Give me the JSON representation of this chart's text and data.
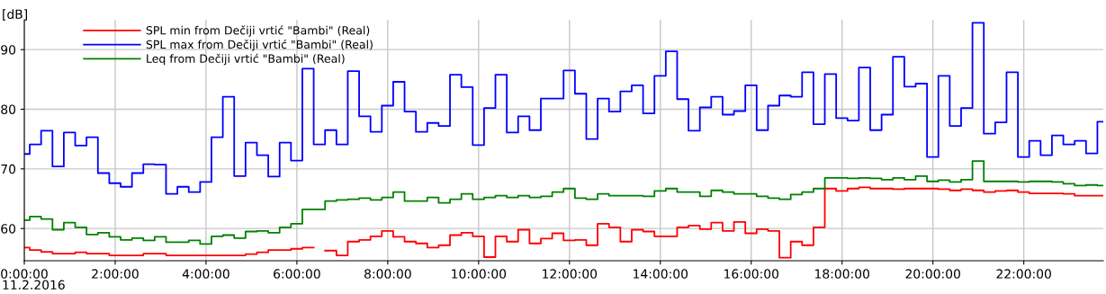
{
  "chart_data": {
    "type": "step",
    "ylabel": "[dB]",
    "annotations": [
      "11.2.2016"
    ],
    "x": [
      0,
      0.12,
      0.37,
      0.62,
      0.87,
      1.12,
      1.37,
      1.62,
      1.87,
      2.12,
      2.37,
      2.62,
      2.87,
      3.12,
      3.37,
      3.62,
      3.87,
      4.12,
      4.37,
      4.62,
      4.87,
      5.12,
      5.37,
      5.62,
      5.87,
      6.12,
      6.37,
      6.62,
      6.87,
      7.12,
      7.37,
      7.62,
      7.87,
      8.12,
      8.37,
      8.62,
      8.87,
      9.12,
      9.37,
      9.62,
      9.87,
      10.12,
      10.37,
      10.62,
      10.87,
      11.12,
      11.37,
      11.62,
      11.87,
      12.12,
      12.37,
      12.62,
      12.87,
      13.12,
      13.37,
      13.62,
      13.87,
      14.12,
      14.37,
      14.62,
      14.87,
      15.12,
      15.37,
      15.62,
      15.87,
      16.12,
      16.37,
      16.62,
      16.87,
      17.12,
      17.37,
      17.62,
      17.87,
      18.12,
      18.37,
      18.62,
      18.87,
      19.12,
      19.37,
      19.62,
      19.87,
      20.12,
      20.37,
      20.62,
      20.87,
      21.12,
      21.37,
      21.62,
      21.87,
      22.12,
      22.37,
      22.62,
      22.87,
      23.12,
      23.37,
      23.62,
      23.75
    ],
    "series": [
      {
        "name": "SPL min from Dečiji vrtić \"Bambi\" (Real)",
        "color": "#ff0000",
        "values": [
          56.8,
          56.4,
          56.1,
          55.8,
          55.8,
          56.0,
          55.8,
          55.8,
          55.5,
          55.5,
          55.5,
          55.8,
          55.8,
          55.5,
          55.5,
          55.5,
          55.5,
          55.5,
          55.5,
          55.5,
          55.7,
          56.0,
          56.4,
          56.4,
          56.6,
          56.8,
          null,
          56.3,
          55.5,
          57.8,
          58.1,
          58.7,
          59.6,
          58.6,
          57.8,
          57.5,
          56.8,
          57.2,
          58.9,
          59.3,
          58.7,
          55.2,
          58.7,
          57.8,
          59.8,
          57.5,
          58.3,
          59.2,
          58.0,
          58.1,
          57.2,
          60.8,
          60.2,
          57.8,
          59.8,
          59.5,
          58.7,
          58.7,
          60.2,
          60.5,
          59.9,
          61.0,
          59.6,
          61.1,
          59.2,
          59.9,
          59.6,
          55.1,
          57.8,
          57.2,
          60.2,
          66.7,
          66.3,
          66.7,
          66.9,
          66.7,
          66.7,
          66.6,
          66.7,
          66.7,
          66.7,
          66.6,
          66.4,
          66.6,
          66.4,
          66.1,
          66.3,
          66.4,
          66.1,
          65.9,
          65.9,
          65.9,
          65.8,
          65.5,
          65.5,
          65.5,
          65.5
        ]
      },
      {
        "name": "SPL max from Dečiji vrtić \"Bambi\" (Real)",
        "color": "#0000ff",
        "values": [
          72.5,
          74.1,
          76.4,
          70.4,
          76.1,
          73.9,
          75.3,
          69.3,
          67.6,
          67.0,
          69.3,
          70.8,
          70.7,
          65.8,
          67.0,
          66.1,
          67.8,
          75.3,
          82.1,
          68.8,
          74.4,
          72.3,
          68.7,
          74.4,
          71.4,
          86.8,
          74.1,
          76.5,
          74.1,
          86.4,
          78.8,
          76.2,
          80.6,
          84.6,
          79.6,
          76.2,
          77.7,
          77.2,
          85.8,
          83.7,
          74.0,
          80.2,
          85.8,
          76.1,
          78.8,
          76.5,
          81.8,
          81.8,
          86.5,
          82.6,
          75.0,
          81.8,
          79.6,
          83.0,
          84.0,
          79.3,
          85.6,
          89.7,
          81.7,
          76.4,
          80.3,
          82.1,
          79.1,
          79.7,
          84.0,
          76.5,
          80.6,
          82.3,
          82.1,
          86.2,
          77.5,
          85.9,
          78.5,
          78.1,
          87.0,
          76.5,
          79.1,
          88.8,
          83.8,
          84.3,
          72.0,
          85.6,
          77.2,
          80.2,
          94.5,
          75.9,
          77.8,
          86.2,
          72.0,
          74.7,
          72.3,
          75.6,
          74.1,
          74.7,
          72.6,
          77.9,
          77.9
        ]
      },
      {
        "name": "Leq from Dečiji vrtić \"Bambi\" (Real)",
        "color": "#008000",
        "values": [
          61.4,
          62.0,
          61.6,
          59.8,
          61.0,
          60.2,
          59.0,
          59.3,
          58.6,
          58.1,
          58.4,
          58.0,
          58.6,
          57.7,
          57.7,
          58.0,
          57.4,
          58.7,
          58.9,
          58.4,
          59.5,
          59.6,
          59.3,
          60.2,
          60.8,
          63.2,
          63.2,
          64.6,
          64.8,
          64.9,
          65.1,
          64.8,
          65.2,
          66.1,
          64.6,
          64.6,
          65.2,
          64.3,
          64.9,
          65.8,
          64.9,
          65.2,
          65.5,
          65.2,
          65.5,
          65.2,
          65.4,
          66.1,
          66.7,
          65.1,
          64.9,
          65.8,
          65.5,
          65.5,
          65.5,
          65.4,
          66.3,
          66.7,
          66.1,
          66.1,
          65.4,
          66.4,
          66.1,
          65.8,
          65.8,
          65.4,
          65.1,
          64.9,
          65.7,
          66.1,
          66.7,
          68.5,
          68.5,
          68.4,
          68.5,
          68.4,
          68.2,
          68.5,
          68.2,
          68.8,
          67.9,
          68.1,
          67.8,
          68.2,
          71.3,
          67.9,
          67.9,
          67.9,
          67.8,
          67.9,
          67.9,
          67.8,
          67.5,
          67.2,
          67.3,
          67.2,
          67.2
        ]
      }
    ],
    "xlim": [
      0,
      23.75
    ],
    "ylim": [
      54.6,
      95
    ],
    "xticks": [
      {
        "value": 0,
        "label": "0:00:00"
      },
      {
        "value": 2,
        "label": "2:00:00"
      },
      {
        "value": 4,
        "label": "4:00:00"
      },
      {
        "value": 6,
        "label": "6:00:00"
      },
      {
        "value": 8,
        "label": "8:00:00"
      },
      {
        "value": 10,
        "label": "10:00:00"
      },
      {
        "value": 12,
        "label": "12:00:00"
      },
      {
        "value": 14,
        "label": "14:00:00"
      },
      {
        "value": 16,
        "label": "16:00:00"
      },
      {
        "value": 18,
        "label": "18:00:00"
      },
      {
        "value": 20,
        "label": "20:00:00"
      },
      {
        "value": 22,
        "label": "22:00:00"
      }
    ],
    "yticks": [
      60,
      70,
      80,
      90
    ],
    "grid": true,
    "legend": "top left"
  }
}
